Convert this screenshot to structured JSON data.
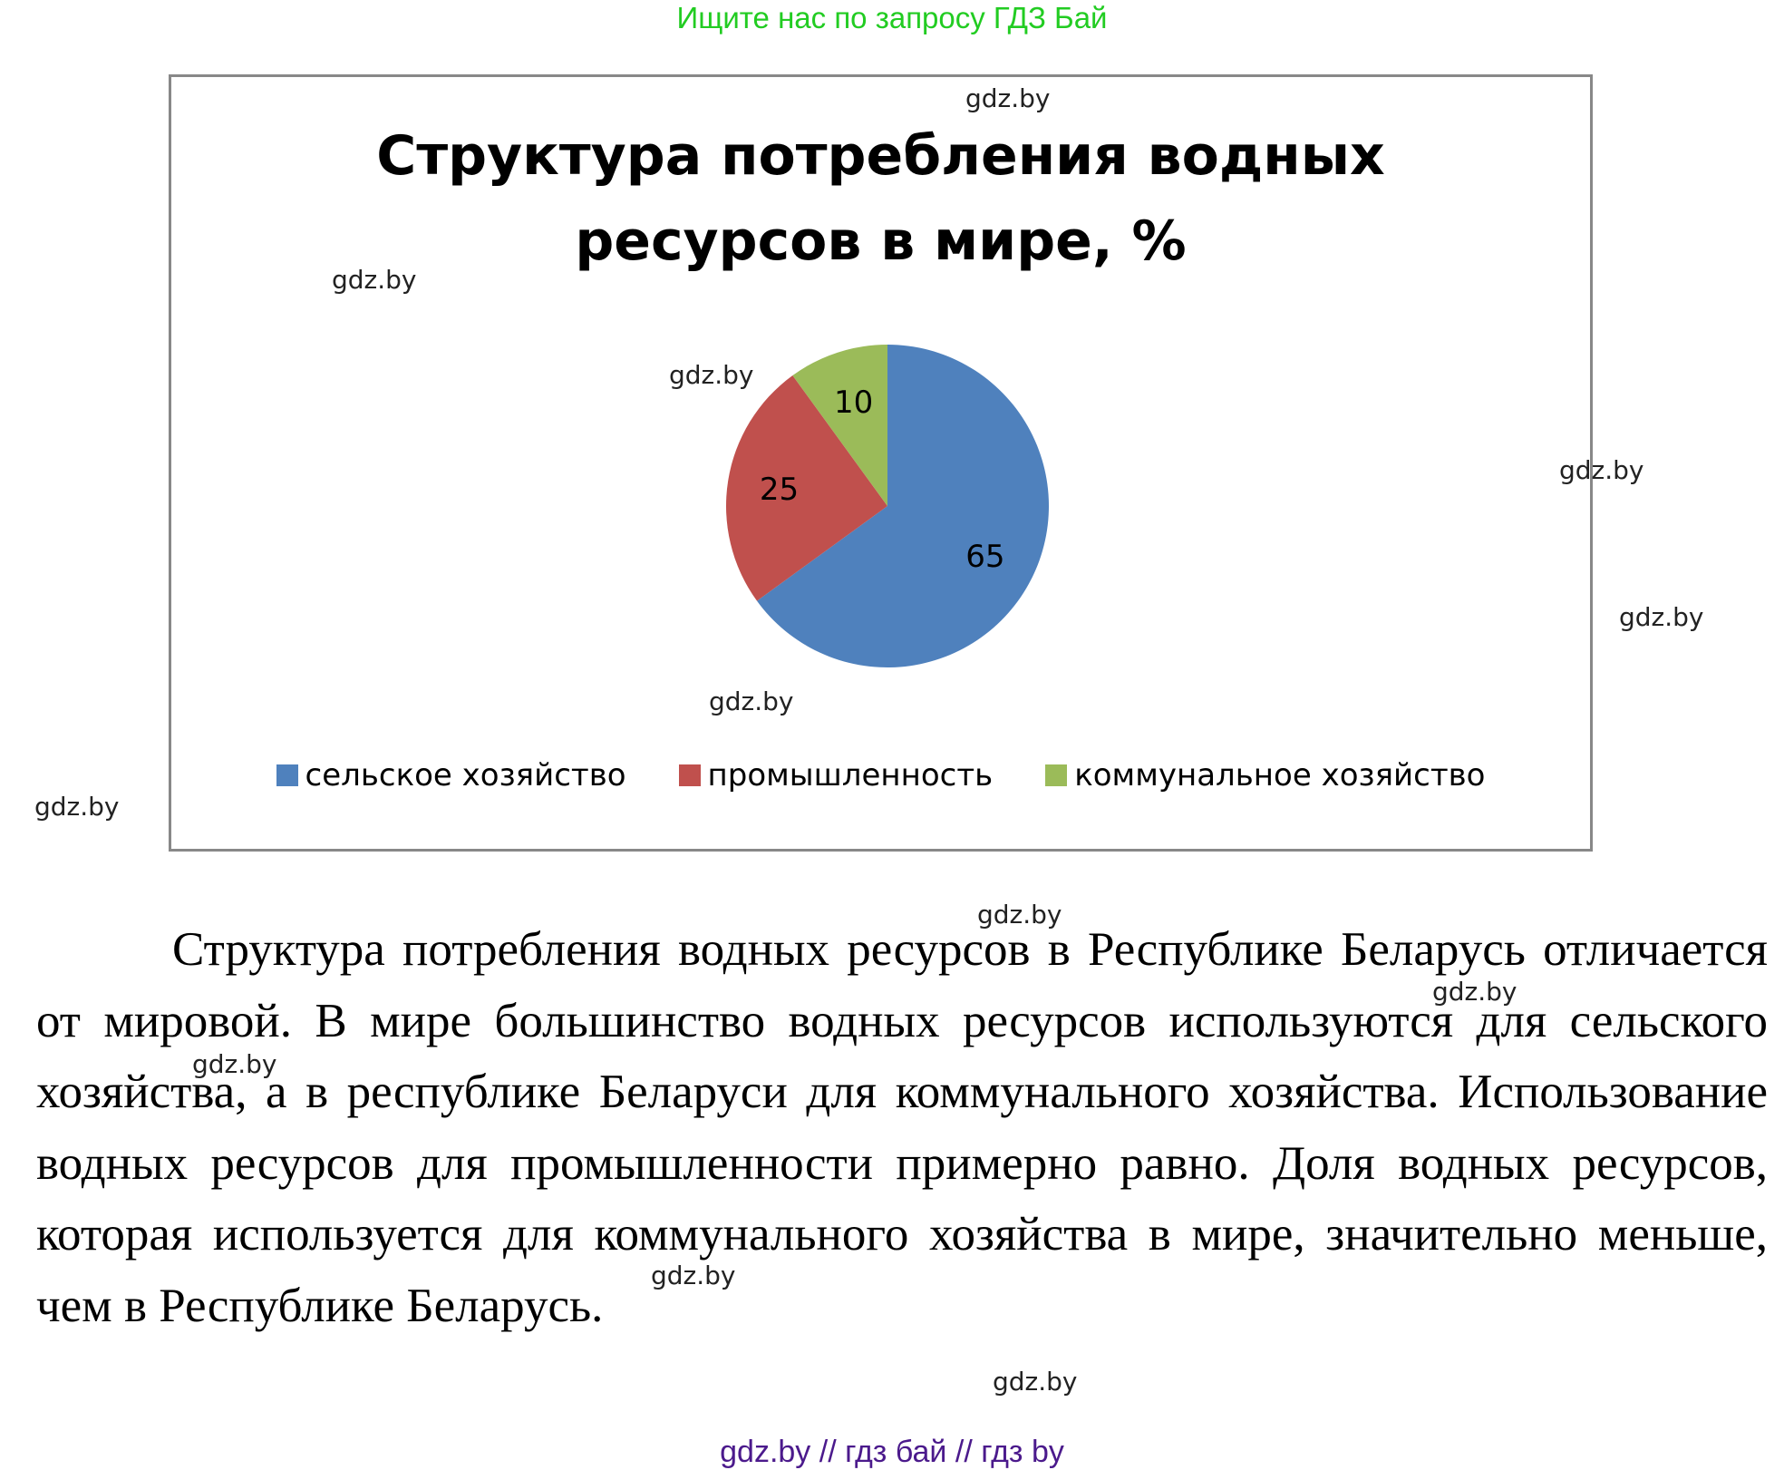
{
  "banner": {
    "text": "Ищите нас по запросу ГДЗ Бай"
  },
  "chart": {
    "title": "Структура потребления водных ресурсов в мире, %",
    "title_line1": "Структура потребления водных",
    "title_line2": "ресурсов в мире, %",
    "slices": [
      {
        "label": "сельское хозяйство",
        "value": 65,
        "value_text": "65",
        "color": "#4F81BD"
      },
      {
        "label": "промышленность",
        "value": 25,
        "value_text": "25",
        "color": "#C0504D"
      },
      {
        "label": "коммунальное хозяйство",
        "value": 10,
        "value_text": "10",
        "color": "#9BBB59"
      }
    ]
  },
  "chart_data": {
    "type": "pie",
    "title": "Структура потребления водных ресурсов в мире, %",
    "categories": [
      "сельское хозяйство",
      "промышленность",
      "коммунальное хозяйство"
    ],
    "values": [
      65,
      25,
      10
    ],
    "colors": [
      "#4F81BD",
      "#C0504D",
      "#9BBB59"
    ],
    "legend_position": "bottom",
    "data_labels": true
  },
  "watermark": "gdz.by",
  "paragraph": {
    "text": "Структура потребления водных ресурсов в Республике Беларусь отличается от мировой. В мире большинство водных ресурсов используются для сельского хозяйства, а в республике Беларуси для коммунального хозяйства. Использование водных ресурсов для промышленности примерно равно. Доля водных ресурсов, которая используется для коммунального хозяйства в мире, значительно меньше, чем в Республике Беларусь."
  },
  "footer": {
    "text": "gdz.by  //  гдз бай  //  гдз by"
  }
}
